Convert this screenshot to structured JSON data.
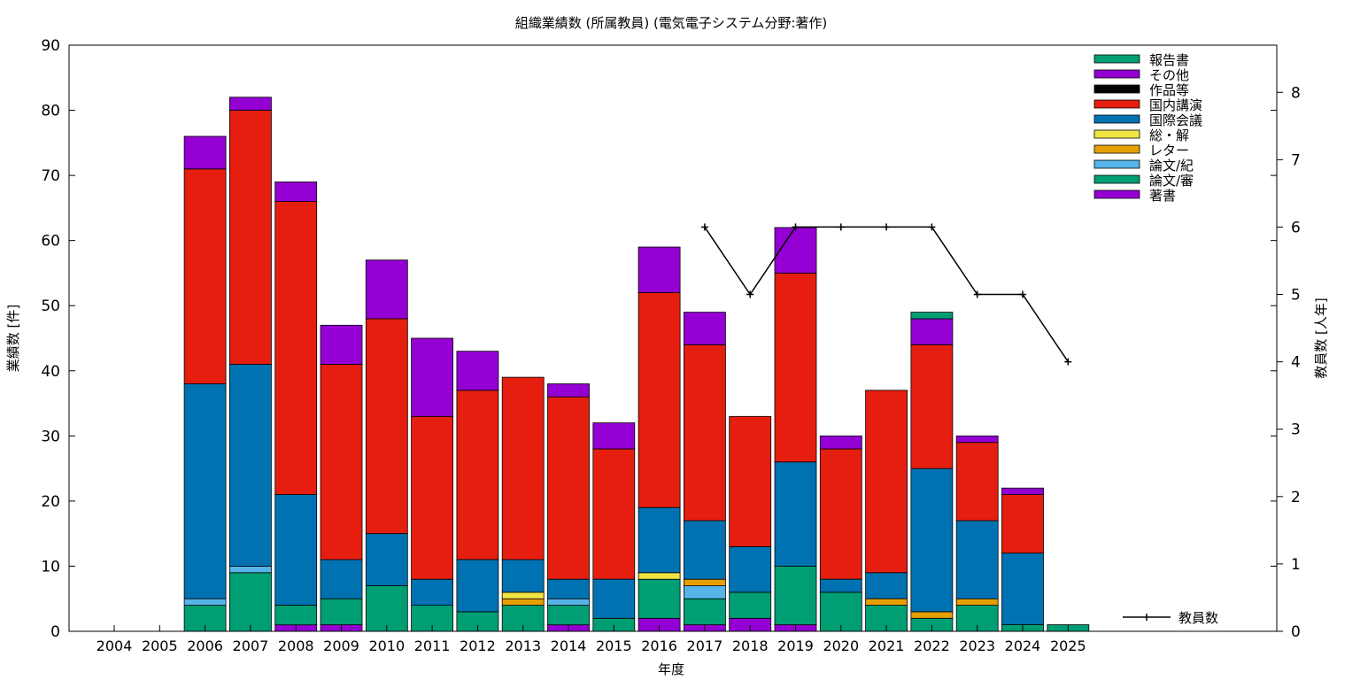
{
  "chart_data": {
    "type": "bar",
    "title": "組織業績数 (所属教員) (電気電子システム分野:著作)",
    "xlabel": "年度",
    "ylabel": "業績数 [件]",
    "y2label": "教員数 [人年]",
    "ylim": [
      0,
      90
    ],
    "y_ticks": [
      0,
      10,
      20,
      30,
      40,
      50,
      60,
      70,
      80,
      90
    ],
    "y2lim": [
      0,
      8.7
    ],
    "y2_ticks": [
      0,
      1,
      2,
      3,
      4,
      5,
      6,
      7,
      8
    ],
    "grid": false,
    "legend_position": "top-right",
    "categories": [
      "2004",
      "2005",
      "2006",
      "2007",
      "2008",
      "2009",
      "2010",
      "2011",
      "2012",
      "2013",
      "2014",
      "2015",
      "2016",
      "2017",
      "2018",
      "2019",
      "2020",
      "2021",
      "2022",
      "2023",
      "2024",
      "2025"
    ],
    "series": [
      {
        "name": "著書",
        "color": "#9400d3",
        "values": [
          0,
          0,
          0,
          0,
          1,
          1,
          0,
          0,
          0,
          0,
          1,
          0,
          2,
          1,
          2,
          1,
          0,
          0,
          0,
          0,
          0,
          0
        ]
      },
      {
        "name": "論文/審",
        "color": "#009e73",
        "values": [
          0,
          0,
          4,
          9,
          3,
          4,
          7,
          4,
          3,
          4,
          3,
          2,
          6,
          4,
          4,
          9,
          6,
          4,
          2,
          4,
          1,
          1
        ]
      },
      {
        "name": "論文/紀",
        "color": "#56b4e9",
        "values": [
          0,
          0,
          1,
          1,
          0,
          0,
          0,
          0,
          0,
          0,
          1,
          0,
          0,
          2,
          0,
          0,
          0,
          0,
          0,
          0,
          0,
          0
        ]
      },
      {
        "name": "レター",
        "color": "#e69f00",
        "values": [
          0,
          0,
          0,
          0,
          0,
          0,
          0,
          0,
          0,
          1,
          0,
          0,
          0,
          1,
          0,
          0,
          0,
          1,
          1,
          1,
          0,
          0
        ]
      },
      {
        "name": "総・解",
        "color": "#f0e442",
        "values": [
          0,
          0,
          0,
          0,
          0,
          0,
          0,
          0,
          0,
          1,
          0,
          0,
          1,
          0,
          0,
          0,
          0,
          0,
          0,
          0,
          0,
          0
        ]
      },
      {
        "name": "国際会議",
        "color": "#0072b2",
        "values": [
          0,
          0,
          33,
          31,
          17,
          6,
          8,
          4,
          8,
          5,
          3,
          6,
          10,
          9,
          7,
          16,
          2,
          4,
          22,
          12,
          11,
          0
        ]
      },
      {
        "name": "国内講演",
        "color": "#e51e10",
        "values": [
          0,
          0,
          33,
          39,
          45,
          30,
          33,
          25,
          26,
          28,
          28,
          20,
          33,
          27,
          20,
          29,
          20,
          28,
          19,
          12,
          9,
          0
        ]
      },
      {
        "name": "作品等",
        "color": "#000000",
        "values": [
          0,
          0,
          0,
          0,
          0,
          0,
          0,
          0,
          0,
          0,
          0,
          0,
          0,
          0,
          0,
          0,
          0,
          0,
          0,
          0,
          0,
          0
        ]
      },
      {
        "name": "その他",
        "color": "#9400d3",
        "values": [
          0,
          0,
          5,
          2,
          3,
          6,
          9,
          12,
          6,
          0,
          2,
          4,
          7,
          5,
          0,
          7,
          2,
          0,
          4,
          1,
          1,
          0
        ]
      },
      {
        "name": "報告書",
        "color": "#009e73",
        "values": [
          0,
          0,
          0,
          0,
          0,
          0,
          0,
          0,
          0,
          0,
          0,
          0,
          0,
          0,
          0,
          0,
          0,
          0,
          1,
          0,
          0,
          0
        ]
      }
    ],
    "line_series": {
      "name": "教員数",
      "color": "#000000",
      "axis": "y2",
      "x": [
        "2017",
        "2018",
        "2019",
        "2020",
        "2021",
        "2022",
        "2023",
        "2024",
        "2025"
      ],
      "values": [
        6,
        5,
        6,
        6,
        6,
        6,
        5,
        5,
        4
      ]
    },
    "legend_order": [
      "報告書",
      "その他",
      "作品等",
      "国内講演",
      "国際会議",
      "総・解",
      "レター",
      "論文/紀",
      "論文/審",
      "著書"
    ]
  }
}
